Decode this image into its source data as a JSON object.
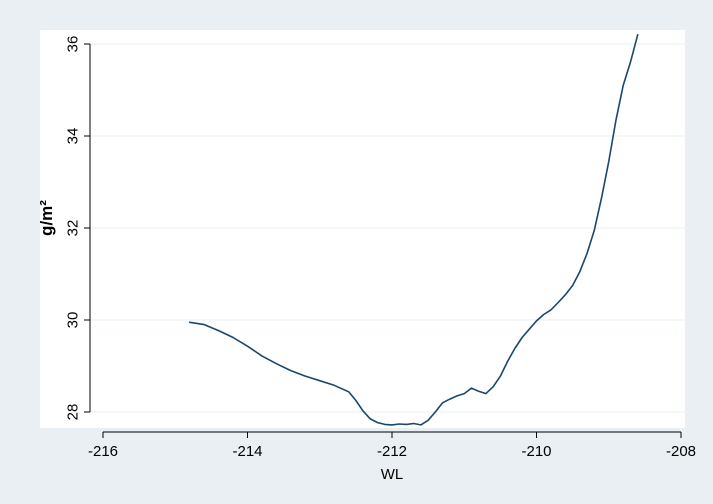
{
  "colors": {
    "background": "#e9eff3",
    "plot_background": "#ffffff",
    "line": "#1a476f",
    "grid": "#eaf2f3",
    "axis": "#000000"
  },
  "chart_data": {
    "type": "line",
    "title": "",
    "xlabel": "WL",
    "ylabel": "g/m²",
    "xlim": [
      -216.3,
      -207.7
    ],
    "ylim": [
      27.55,
      36.45
    ],
    "x_ticks": [
      -216,
      -214,
      -212,
      -210,
      -208
    ],
    "y_ticks": [
      28,
      30,
      32,
      34,
      36
    ],
    "x_tick_labels": [
      "-216",
      "-214",
      "-212",
      "-210",
      "-208"
    ],
    "y_tick_labels": [
      "28",
      "30",
      "32",
      "34",
      "36"
    ],
    "grid": true,
    "legend": "none",
    "series": [
      {
        "x": [
          -214.8,
          -214.6,
          -214.4,
          -214.2,
          -214.0,
          -213.8,
          -213.6,
          -213.4,
          -213.2,
          -213.0,
          -212.8,
          -212.6,
          -212.5,
          -212.4,
          -212.3,
          -212.2,
          -212.1,
          -212.0,
          -211.9,
          -211.8,
          -211.7,
          -211.6,
          -211.5,
          -211.4,
          -211.3,
          -211.2,
          -211.1,
          -211.0,
          -210.9,
          -210.8,
          -210.7,
          -210.6,
          -210.5,
          -210.4,
          -210.3,
          -210.2,
          -210.1,
          -210.0,
          -209.9,
          -209.8,
          -209.7,
          -209.6,
          -209.5,
          -209.4,
          -209.3,
          -209.2,
          -209.1,
          -209.0,
          -208.9,
          -208.8,
          -208.7,
          -208.6
        ],
        "y": [
          29.95,
          29.9,
          29.77,
          29.62,
          29.43,
          29.22,
          29.05,
          28.9,
          28.78,
          28.68,
          28.58,
          28.44,
          28.25,
          28.02,
          27.85,
          27.77,
          27.73,
          27.72,
          27.74,
          27.73,
          27.75,
          27.72,
          27.82,
          28.0,
          28.2,
          28.28,
          28.35,
          28.4,
          28.52,
          28.45,
          28.4,
          28.55,
          28.78,
          29.1,
          29.38,
          29.62,
          29.8,
          29.98,
          30.12,
          30.22,
          30.38,
          30.55,
          30.75,
          31.05,
          31.45,
          31.95,
          32.65,
          33.45,
          34.35,
          35.1,
          35.6,
          36.2
        ]
      }
    ]
  }
}
